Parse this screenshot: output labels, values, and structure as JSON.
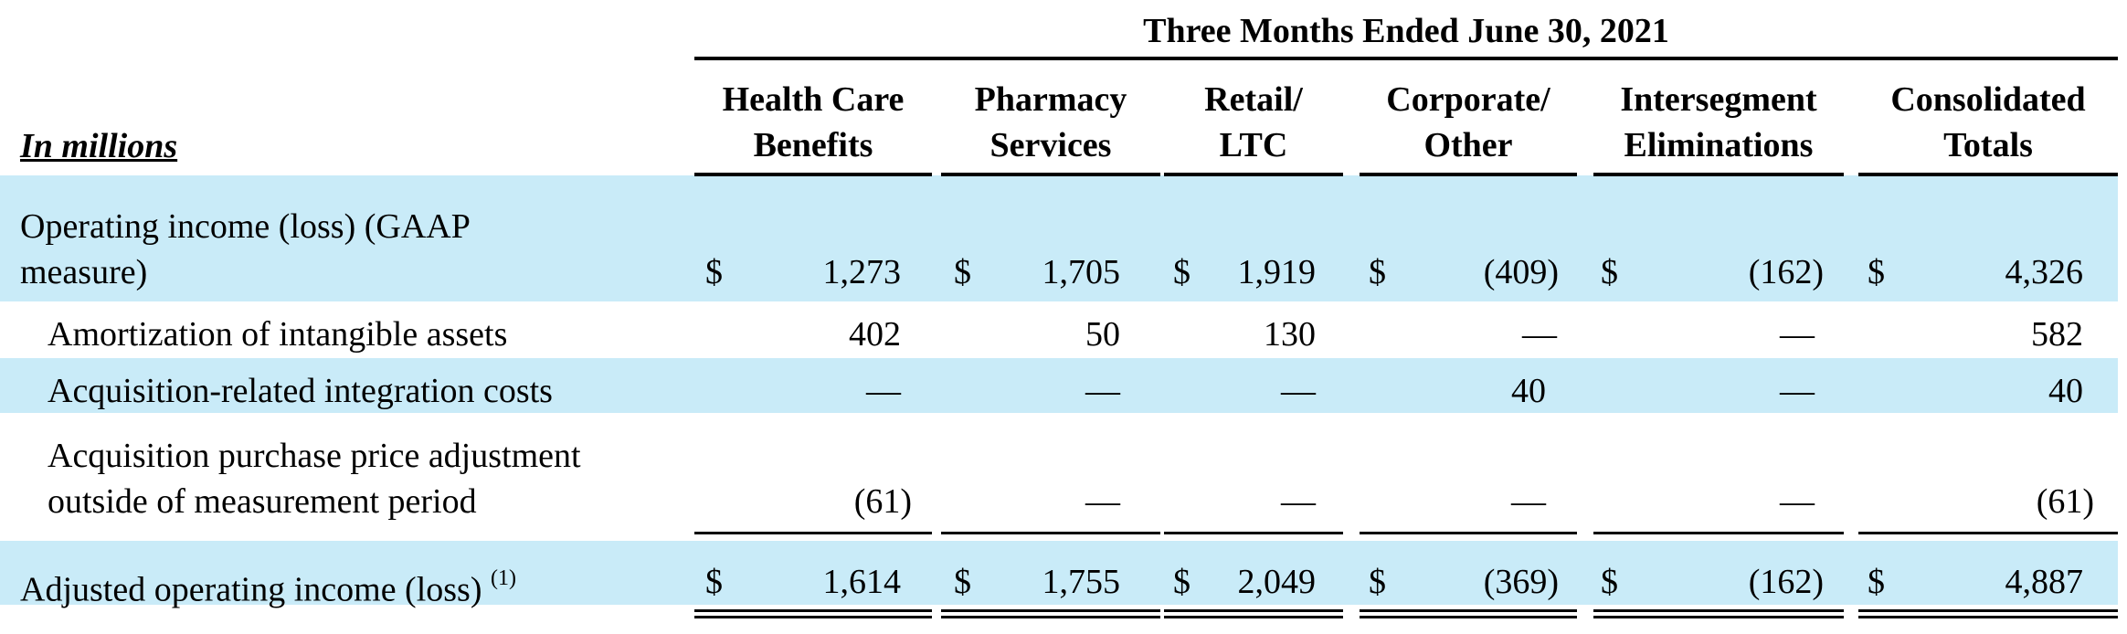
{
  "table": {
    "period_header": "Three Months Ended June 30, 2021",
    "units_label": "In millions",
    "columns": [
      {
        "line1": "Health Care",
        "line2": "Benefits"
      },
      {
        "line1": "Pharmacy",
        "line2": "Services"
      },
      {
        "line1": "Retail/",
        "line2": "LTC"
      },
      {
        "line1": "Corporate/",
        "line2": "Other"
      },
      {
        "line1": "Intersegment",
        "line2": "Eliminations"
      },
      {
        "line1": "Consolidated",
        "line2": "Totals"
      }
    ],
    "rows": [
      {
        "label_line1": "Operating income (loss) (GAAP",
        "label_line2": "measure)",
        "currency": "$",
        "values": [
          "1,273",
          "1,705",
          "1,919",
          "(409)",
          "(162)",
          "4,326"
        ]
      },
      {
        "label": "Amortization of intangible assets",
        "values": [
          "402",
          "50",
          "130",
          "—",
          "—",
          "582"
        ]
      },
      {
        "label": "Acquisition-related integration costs",
        "values": [
          "—",
          "—",
          "—",
          "40",
          "—",
          "40"
        ]
      },
      {
        "label_line1": "Acquisition purchase price adjustment",
        "label_line2": "outside of measurement period",
        "values": [
          "(61)",
          "—",
          "—",
          "—",
          "—",
          "(61)"
        ]
      },
      {
        "label": "Adjusted operating income (loss)",
        "footnote": "(1)",
        "currency": "$",
        "values": [
          "1,614",
          "1,755",
          "2,049",
          "(369)",
          "(162)",
          "4,887"
        ]
      }
    ]
  }
}
